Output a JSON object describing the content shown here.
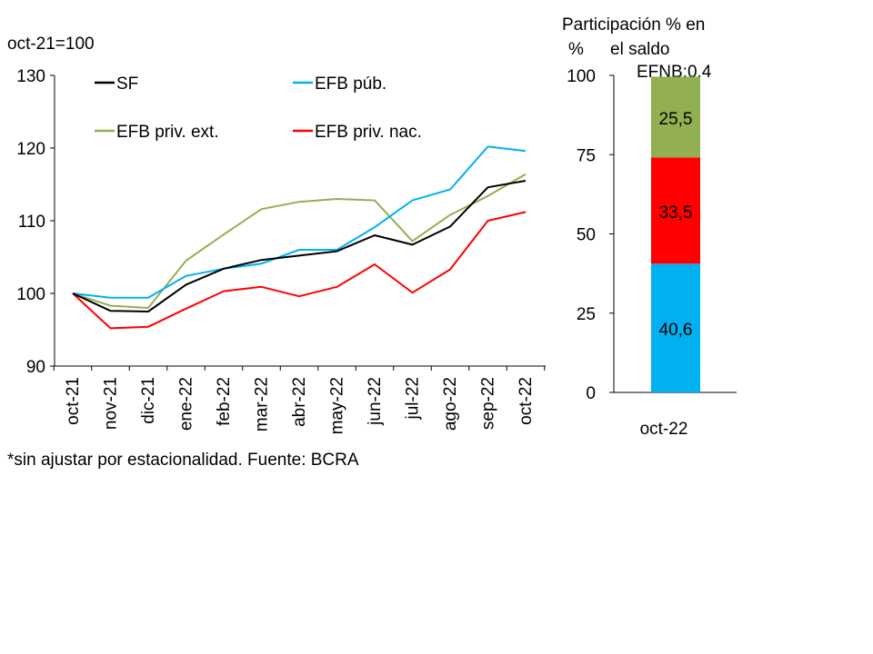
{
  "chart_data": [
    {
      "type": "line",
      "title": "",
      "ylabel": "oct-21=100",
      "xlabel": "",
      "ylim": [
        90,
        130
      ],
      "yticks": [
        90,
        100,
        110,
        120,
        130
      ],
      "grid": false,
      "legend_position": "top-left",
      "categories": [
        "oct-21",
        "nov-21",
        "dic-21",
        "ene-22",
        "feb-22",
        "mar-22",
        "abr-22",
        "may-22",
        "jun-22",
        "jul-22",
        "ago-22",
        "sep-22",
        "oct-22"
      ],
      "series": [
        {
          "name": "SF",
          "color": "#000000",
          "values": [
            100,
            97.6,
            97.5,
            101.2,
            103.4,
            104.6,
            105.2,
            105.8,
            108.0,
            106.7,
            109.2,
            114.6,
            115.5
          ]
        },
        {
          "name": "EFB púb.",
          "color": "#00b0f0",
          "values": [
            100,
            99.4,
            99.4,
            102.4,
            103.4,
            104.1,
            106.0,
            106.0,
            109.1,
            112.8,
            114.3,
            120.2,
            119.6
          ]
        },
        {
          "name": "EFB priv. ext.",
          "color": "#92b050",
          "values": [
            100,
            98.3,
            98.0,
            104.5,
            108.1,
            111.6,
            112.6,
            113.0,
            112.8,
            107.2,
            110.8,
            113.4,
            116.4
          ]
        },
        {
          "name": "EFB priv. nac.",
          "color": "#ff0000",
          "values": [
            100,
            95.2,
            95.4,
            97.9,
            100.3,
            100.9,
            99.6,
            100.9,
            104.0,
            100.1,
            103.3,
            110.0,
            111.2
          ]
        }
      ]
    },
    {
      "type": "bar",
      "stacked": true,
      "title": "Participación % en el saldo",
      "ylabel": "%",
      "ylim": [
        0,
        100
      ],
      "yticks": [
        0,
        25,
        50,
        75,
        100
      ],
      "categories": [
        "oct-22"
      ],
      "annotation": "EFNB:0,4",
      "segments": [
        {
          "value": 40.6,
          "label": "40,6",
          "color": "#00b0f0"
        },
        {
          "value": 33.5,
          "label": "33,5",
          "color": "#ff0000"
        },
        {
          "value": 25.5,
          "label": "25,5",
          "color": "#92b050"
        },
        {
          "value": 0.4,
          "label": "",
          "color": "#ffffff"
        }
      ]
    }
  ],
  "title_line1": "Participación % en",
  "title_line2": "el saldo",
  "footnote": "*sin ajustar por estacionalidad. Fuente: BCRA"
}
